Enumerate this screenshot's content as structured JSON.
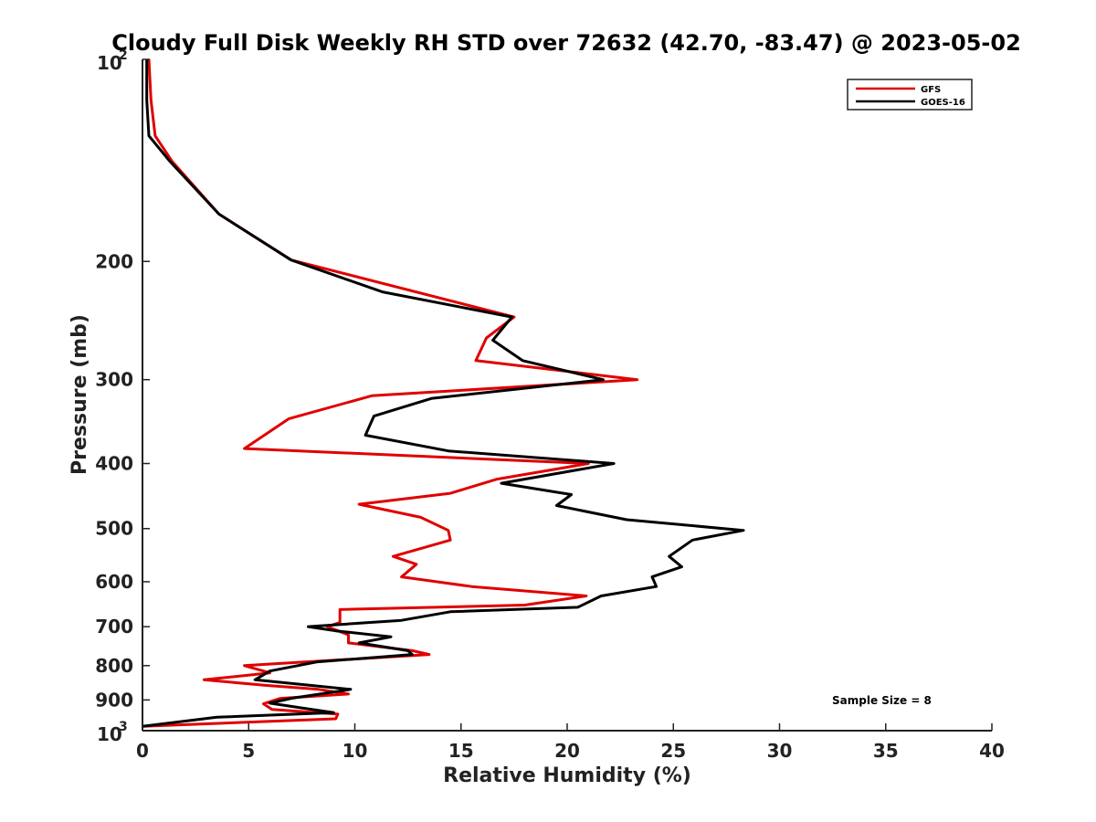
{
  "chart_data": {
    "type": "line",
    "title": "Cloudy Full Disk Weekly RH STD over 72632 (42.70, -83.47) @ 2023-05-02",
    "xlabel": "Relative Humidity (%)",
    "ylabel": "Pressure (mb)",
    "xlim": [
      0,
      40
    ],
    "ylim": [
      100,
      1000
    ],
    "yscale": "log",
    "y_reversed": true,
    "grid": false,
    "x_ticks": [
      {
        "value": 0,
        "label": "0"
      },
      {
        "value": 5,
        "label": "5"
      },
      {
        "value": 10,
        "label": "10"
      },
      {
        "value": 15,
        "label": "15"
      },
      {
        "value": 20,
        "label": "20"
      },
      {
        "value": 25,
        "label": "25"
      },
      {
        "value": 30,
        "label": "30"
      },
      {
        "value": 35,
        "label": "35"
      },
      {
        "value": 40,
        "label": "40"
      }
    ],
    "y_ticks": [
      {
        "value": 100,
        "base": "10",
        "exp": "2"
      },
      {
        "value": 200,
        "label": "200"
      },
      {
        "value": 300,
        "label": "300"
      },
      {
        "value": 400,
        "label": "400"
      },
      {
        "value": 500,
        "label": "500"
      },
      {
        "value": 600,
        "label": "600"
      },
      {
        "value": 700,
        "label": "700"
      },
      {
        "value": 800,
        "label": "800"
      },
      {
        "value": 900,
        "label": "900"
      },
      {
        "value": 1000,
        "base": "10",
        "exp": "3"
      }
    ],
    "legend_position": "top-right",
    "annotation": "Sample Size = 8",
    "series": [
      {
        "name": "GFS",
        "color": "#e00000",
        "points": [
          [
            0.3,
            100
          ],
          [
            0.4,
            115
          ],
          [
            0.6,
            130
          ],
          [
            1.4,
            142
          ],
          [
            3.6,
            170
          ],
          [
            7.0,
            199
          ],
          [
            17.5,
            242
          ],
          [
            16.2,
            260
          ],
          [
            15.7,
            281
          ],
          [
            23.3,
            300
          ],
          [
            10.8,
            317
          ],
          [
            6.9,
            343
          ],
          [
            4.8,
            380
          ],
          [
            21.0,
            400
          ],
          [
            16.7,
            422
          ],
          [
            14.5,
            443
          ],
          [
            10.2,
            460
          ],
          [
            13.1,
            481
          ],
          [
            14.4,
            503
          ],
          [
            14.5,
            520
          ],
          [
            11.8,
            550
          ],
          [
            12.9,
            565
          ],
          [
            12.2,
            590
          ],
          [
            15.5,
            610
          ],
          [
            20.9,
            630
          ],
          [
            18.0,
            650
          ],
          [
            9.3,
            660
          ],
          [
            9.3,
            690
          ],
          [
            8.7,
            700
          ],
          [
            9.7,
            720
          ],
          [
            9.7,
            740
          ],
          [
            12.7,
            760
          ],
          [
            13.5,
            770
          ],
          [
            10.6,
            780
          ],
          [
            4.8,
            800
          ],
          [
            6.0,
            820
          ],
          [
            2.9,
            840
          ],
          [
            5.8,
            856
          ],
          [
            8.3,
            868
          ],
          [
            9.7,
            882
          ],
          [
            6.5,
            895
          ],
          [
            5.7,
            912
          ],
          [
            6.1,
            930
          ],
          [
            9.2,
            945
          ],
          [
            9.1,
            960
          ],
          [
            0.0,
            985
          ]
        ]
      },
      {
        "name": "GOES-16",
        "color": "#000000",
        "points": [
          [
            0.2,
            100
          ],
          [
            0.2,
            115
          ],
          [
            0.3,
            130
          ],
          [
            1.3,
            142
          ],
          [
            3.6,
            170
          ],
          [
            7.0,
            199
          ],
          [
            11.3,
            222
          ],
          [
            17.4,
            242
          ],
          [
            16.5,
            262
          ],
          [
            17.9,
            281
          ],
          [
            21.7,
            300
          ],
          [
            13.6,
            320
          ],
          [
            10.9,
            340
          ],
          [
            10.5,
            363
          ],
          [
            14.4,
            383
          ],
          [
            22.2,
            400
          ],
          [
            16.9,
            428
          ],
          [
            20.2,
            445
          ],
          [
            19.5,
            462
          ],
          [
            22.8,
            485
          ],
          [
            28.3,
            503
          ],
          [
            25.9,
            520
          ],
          [
            24.8,
            550
          ],
          [
            25.4,
            570
          ],
          [
            24.0,
            590
          ],
          [
            24.2,
            610
          ],
          [
            21.6,
            630
          ],
          [
            20.5,
            655
          ],
          [
            14.5,
            665
          ],
          [
            12.2,
            685
          ],
          [
            7.8,
            700
          ],
          [
            9.1,
            710
          ],
          [
            11.7,
            725
          ],
          [
            10.2,
            740
          ],
          [
            12.5,
            760
          ],
          [
            12.7,
            770
          ],
          [
            8.2,
            790
          ],
          [
            6.0,
            815
          ],
          [
            5.3,
            840
          ],
          [
            9.8,
            868
          ],
          [
            7.0,
            895
          ],
          [
            6.0,
            910
          ],
          [
            7.5,
            925
          ],
          [
            9.0,
            940
          ],
          [
            3.5,
            955
          ],
          [
            0.0,
            985
          ]
        ]
      }
    ]
  }
}
